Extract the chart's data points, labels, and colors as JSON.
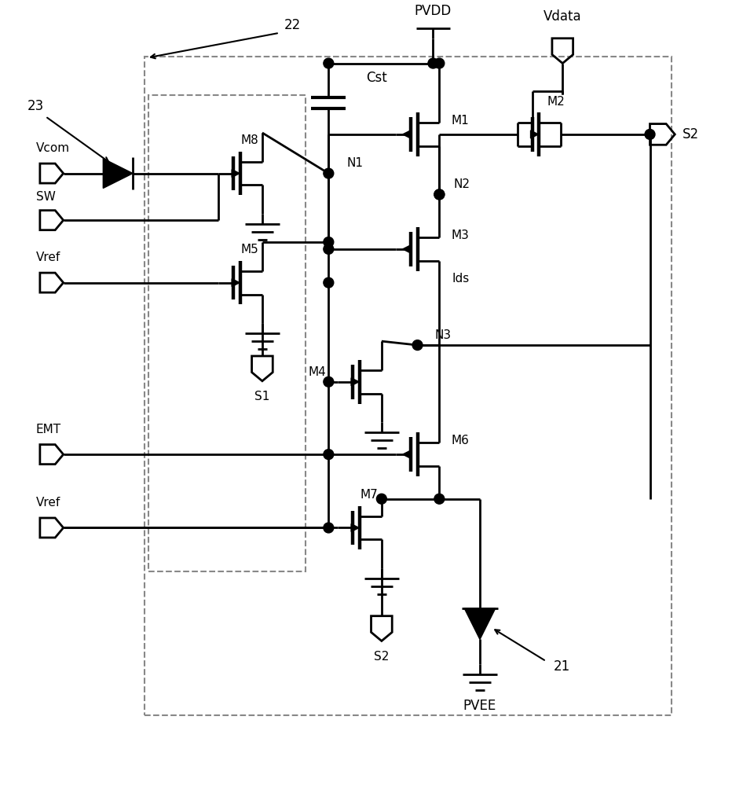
{
  "bg_color": "#ffffff",
  "line_color": "#000000",
  "lw": 2.0,
  "figsize": [
    9.32,
    10.0
  ],
  "dpi": 100,
  "xlim": [
    0,
    9.32
  ],
  "ylim": [
    0,
    10.0
  ]
}
